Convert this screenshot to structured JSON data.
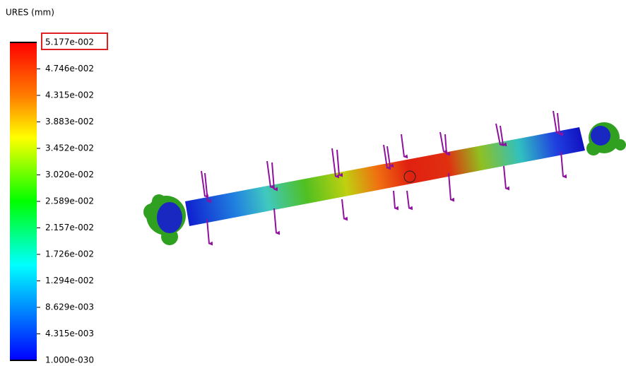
{
  "legend": {
    "title": "URES (mm)",
    "labels": [
      "5.177e-002",
      "4.746e-002",
      "4.315e-002",
      "3.883e-002",
      "3.452e-002",
      "3.020e-002",
      "2.589e-002",
      "2.157e-002",
      "1.726e-002",
      "1.294e-002",
      "8.629e-003",
      "4.315e-003",
      "1.000e-030"
    ]
  }
}
